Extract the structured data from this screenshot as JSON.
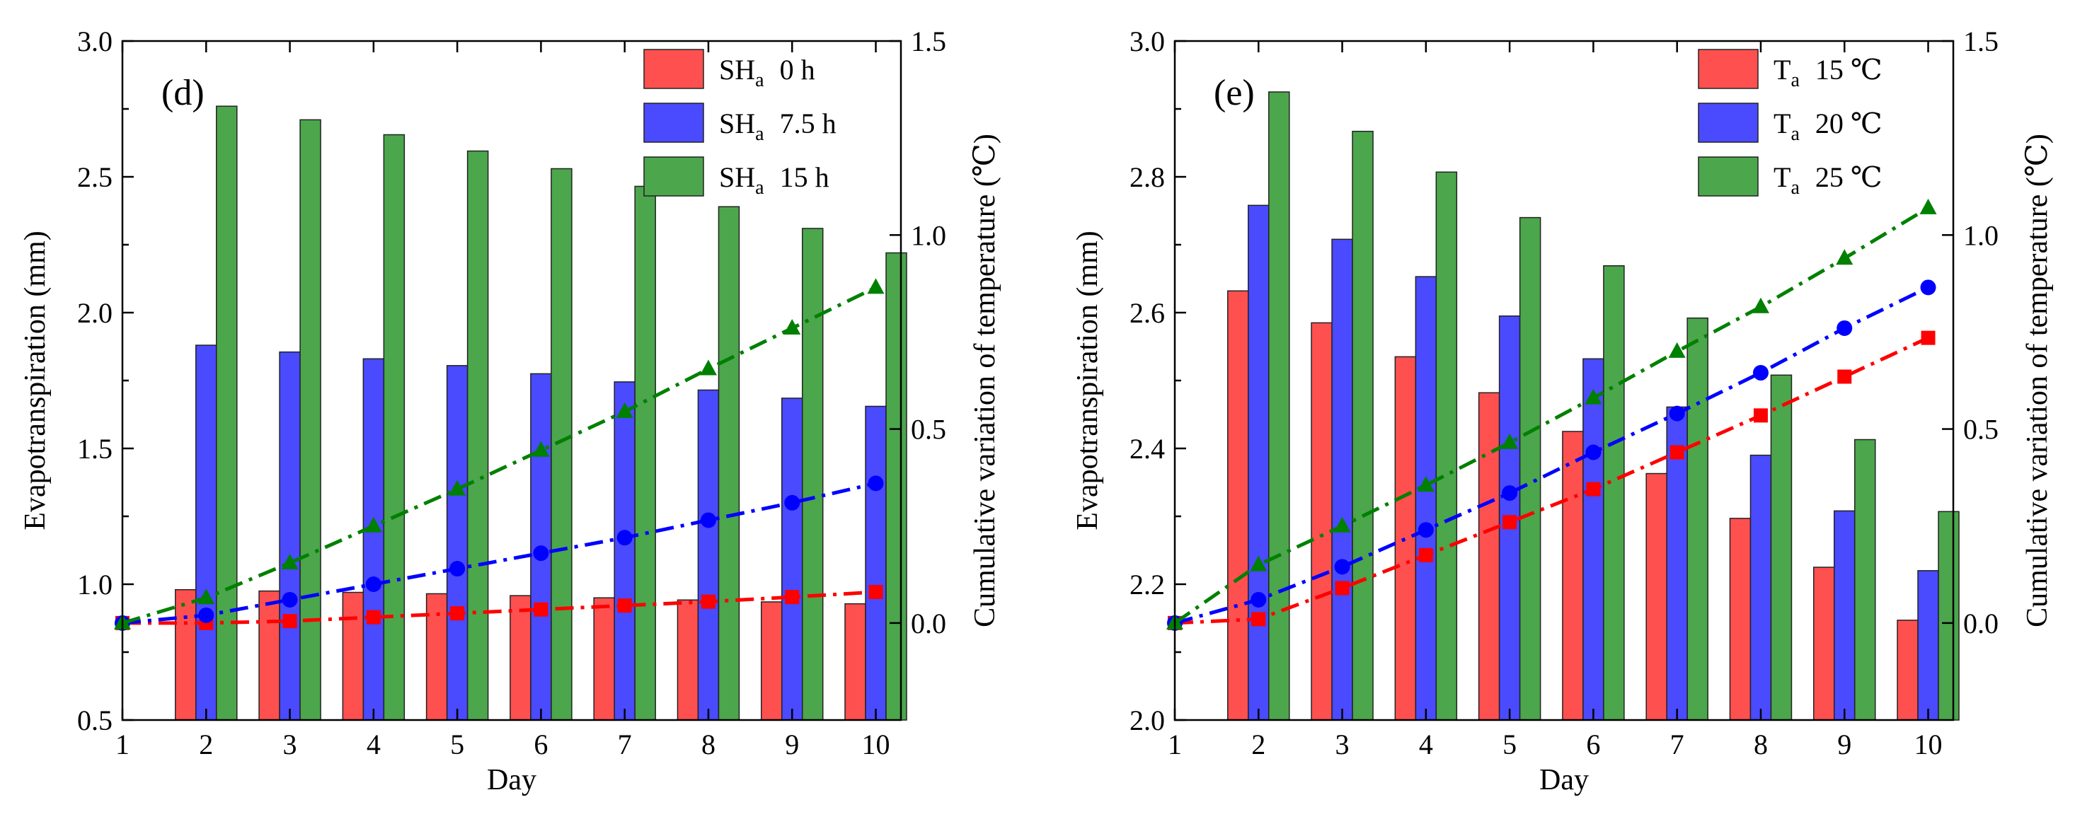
{
  "chart_data": [
    {
      "type": "bar+line",
      "panel_label": "(d)",
      "xlabel": "Day",
      "ylabel_left": "Evapotranspiration (mm)",
      "ylabel_right": "Cumulative variation of temperature (℃)",
      "x_ticks": [
        1,
        2,
        3,
        4,
        5,
        6,
        7,
        8,
        9,
        10
      ],
      "ylim_left": [
        0.5,
        3.0
      ],
      "yticks_left": [
        0.5,
        1.0,
        1.5,
        2.0,
        2.5,
        3.0
      ],
      "ytick_labels_left": [
        "0.5",
        "1.0",
        "1.5",
        "2.0",
        "2.5",
        "3.0"
      ],
      "ylim_right": [
        -0.25,
        1.5
      ],
      "yticks_right": [
        0.0,
        0.5,
        1.0,
        1.5
      ],
      "ytick_labels_right": [
        "0.0",
        "0.5",
        "1.0",
        "1.5"
      ],
      "bar_days": [
        2,
        3,
        4,
        5,
        6,
        7,
        8,
        9,
        10
      ],
      "line_days": [
        1,
        2,
        3,
        4,
        5,
        6,
        7,
        8,
        9,
        10
      ],
      "legend_position": "top-right",
      "series": [
        {
          "base": "SH",
          "sub": "a",
          "value": "0 h",
          "color": "#FF5050",
          "line_color": "#FF0000",
          "marker": "square",
          "bars": [
            0.98,
            0.975,
            0.97,
            0.965,
            0.958,
            0.95,
            0.942,
            0.935,
            0.928
          ],
          "line": [
            0.0,
            0.0,
            0.005,
            0.015,
            0.025,
            0.035,
            0.045,
            0.055,
            0.067,
            0.08
          ]
        },
        {
          "base": "SH",
          "sub": "a",
          "value": "7.5 h",
          "color": "#4A4AFF",
          "line_color": "#0000FF",
          "marker": "circle",
          "bars": [
            1.88,
            1.855,
            1.83,
            1.805,
            1.775,
            1.745,
            1.715,
            1.685,
            1.655
          ],
          "line": [
            0.0,
            0.02,
            0.06,
            0.1,
            0.14,
            0.18,
            0.22,
            0.265,
            0.31,
            0.36
          ]
        },
        {
          "base": "SH",
          "sub": "a",
          "value": "15 h",
          "color": "#4CA64C",
          "line_color": "#008000",
          "marker": "triangle",
          "bars": [
            2.76,
            2.71,
            2.655,
            2.595,
            2.53,
            2.465,
            2.39,
            2.31,
            2.22
          ],
          "line": [
            0.0,
            0.065,
            0.155,
            0.25,
            0.345,
            0.445,
            0.545,
            0.655,
            0.76,
            0.865
          ]
        }
      ]
    },
    {
      "type": "bar+line",
      "panel_label": "(e)",
      "xlabel": "Day",
      "ylabel_left": "Evapotranspiration (mm)",
      "ylabel_right": "Cumulative variation of temperature (℃)",
      "x_ticks": [
        1,
        2,
        3,
        4,
        5,
        6,
        7,
        8,
        9,
        10
      ],
      "ylim_left": [
        2.0,
        3.0
      ],
      "yticks_left": [
        2.0,
        2.2,
        2.4,
        2.6,
        2.8,
        3.0
      ],
      "ytick_labels_left": [
        "2.0",
        "2.2",
        "2.4",
        "2.6",
        "2.8",
        "3.0"
      ],
      "ylim_right": [
        -0.25,
        1.5
      ],
      "yticks_right": [
        0.0,
        0.5,
        1.0,
        1.5
      ],
      "ytick_labels_right": [
        "0.0",
        "0.5",
        "1.0",
        "1.5"
      ],
      "bar_days": [
        2,
        3,
        4,
        5,
        6,
        7,
        8,
        9,
        10
      ],
      "line_days": [
        1,
        2,
        3,
        4,
        5,
        6,
        7,
        8,
        9,
        10
      ],
      "legend_position": "top-right",
      "series": [
        {
          "base": "T",
          "sub": "a",
          "value": "15 ℃",
          "color": "#FF5050",
          "line_color": "#FF0000",
          "marker": "square",
          "bars": [
            2.632,
            2.585,
            2.535,
            2.482,
            2.425,
            2.363,
            2.297,
            2.225,
            2.147
          ],
          "line": [
            0.0,
            0.01,
            0.09,
            0.175,
            0.26,
            0.345,
            0.44,
            0.535,
            0.635,
            0.735
          ]
        },
        {
          "base": "T",
          "sub": "a",
          "value": "20 ℃",
          "color": "#4A4AFF",
          "line_color": "#0000FF",
          "marker": "circle",
          "bars": [
            2.758,
            2.708,
            2.653,
            2.595,
            2.532,
            2.461,
            2.39,
            2.308,
            2.22
          ],
          "line": [
            0.0,
            0.06,
            0.145,
            0.24,
            0.335,
            0.44,
            0.54,
            0.645,
            0.76,
            0.865
          ]
        },
        {
          "base": "T",
          "sub": "a",
          "value": "25 ℃",
          "color": "#4CA64C",
          "line_color": "#008000",
          "marker": "triangle",
          "bars": [
            2.925,
            2.867,
            2.807,
            2.74,
            2.669,
            2.592,
            2.508,
            2.413,
            2.307
          ],
          "line": [
            0.0,
            0.15,
            0.25,
            0.355,
            0.465,
            0.58,
            0.7,
            0.815,
            0.94,
            1.07
          ]
        }
      ]
    }
  ]
}
